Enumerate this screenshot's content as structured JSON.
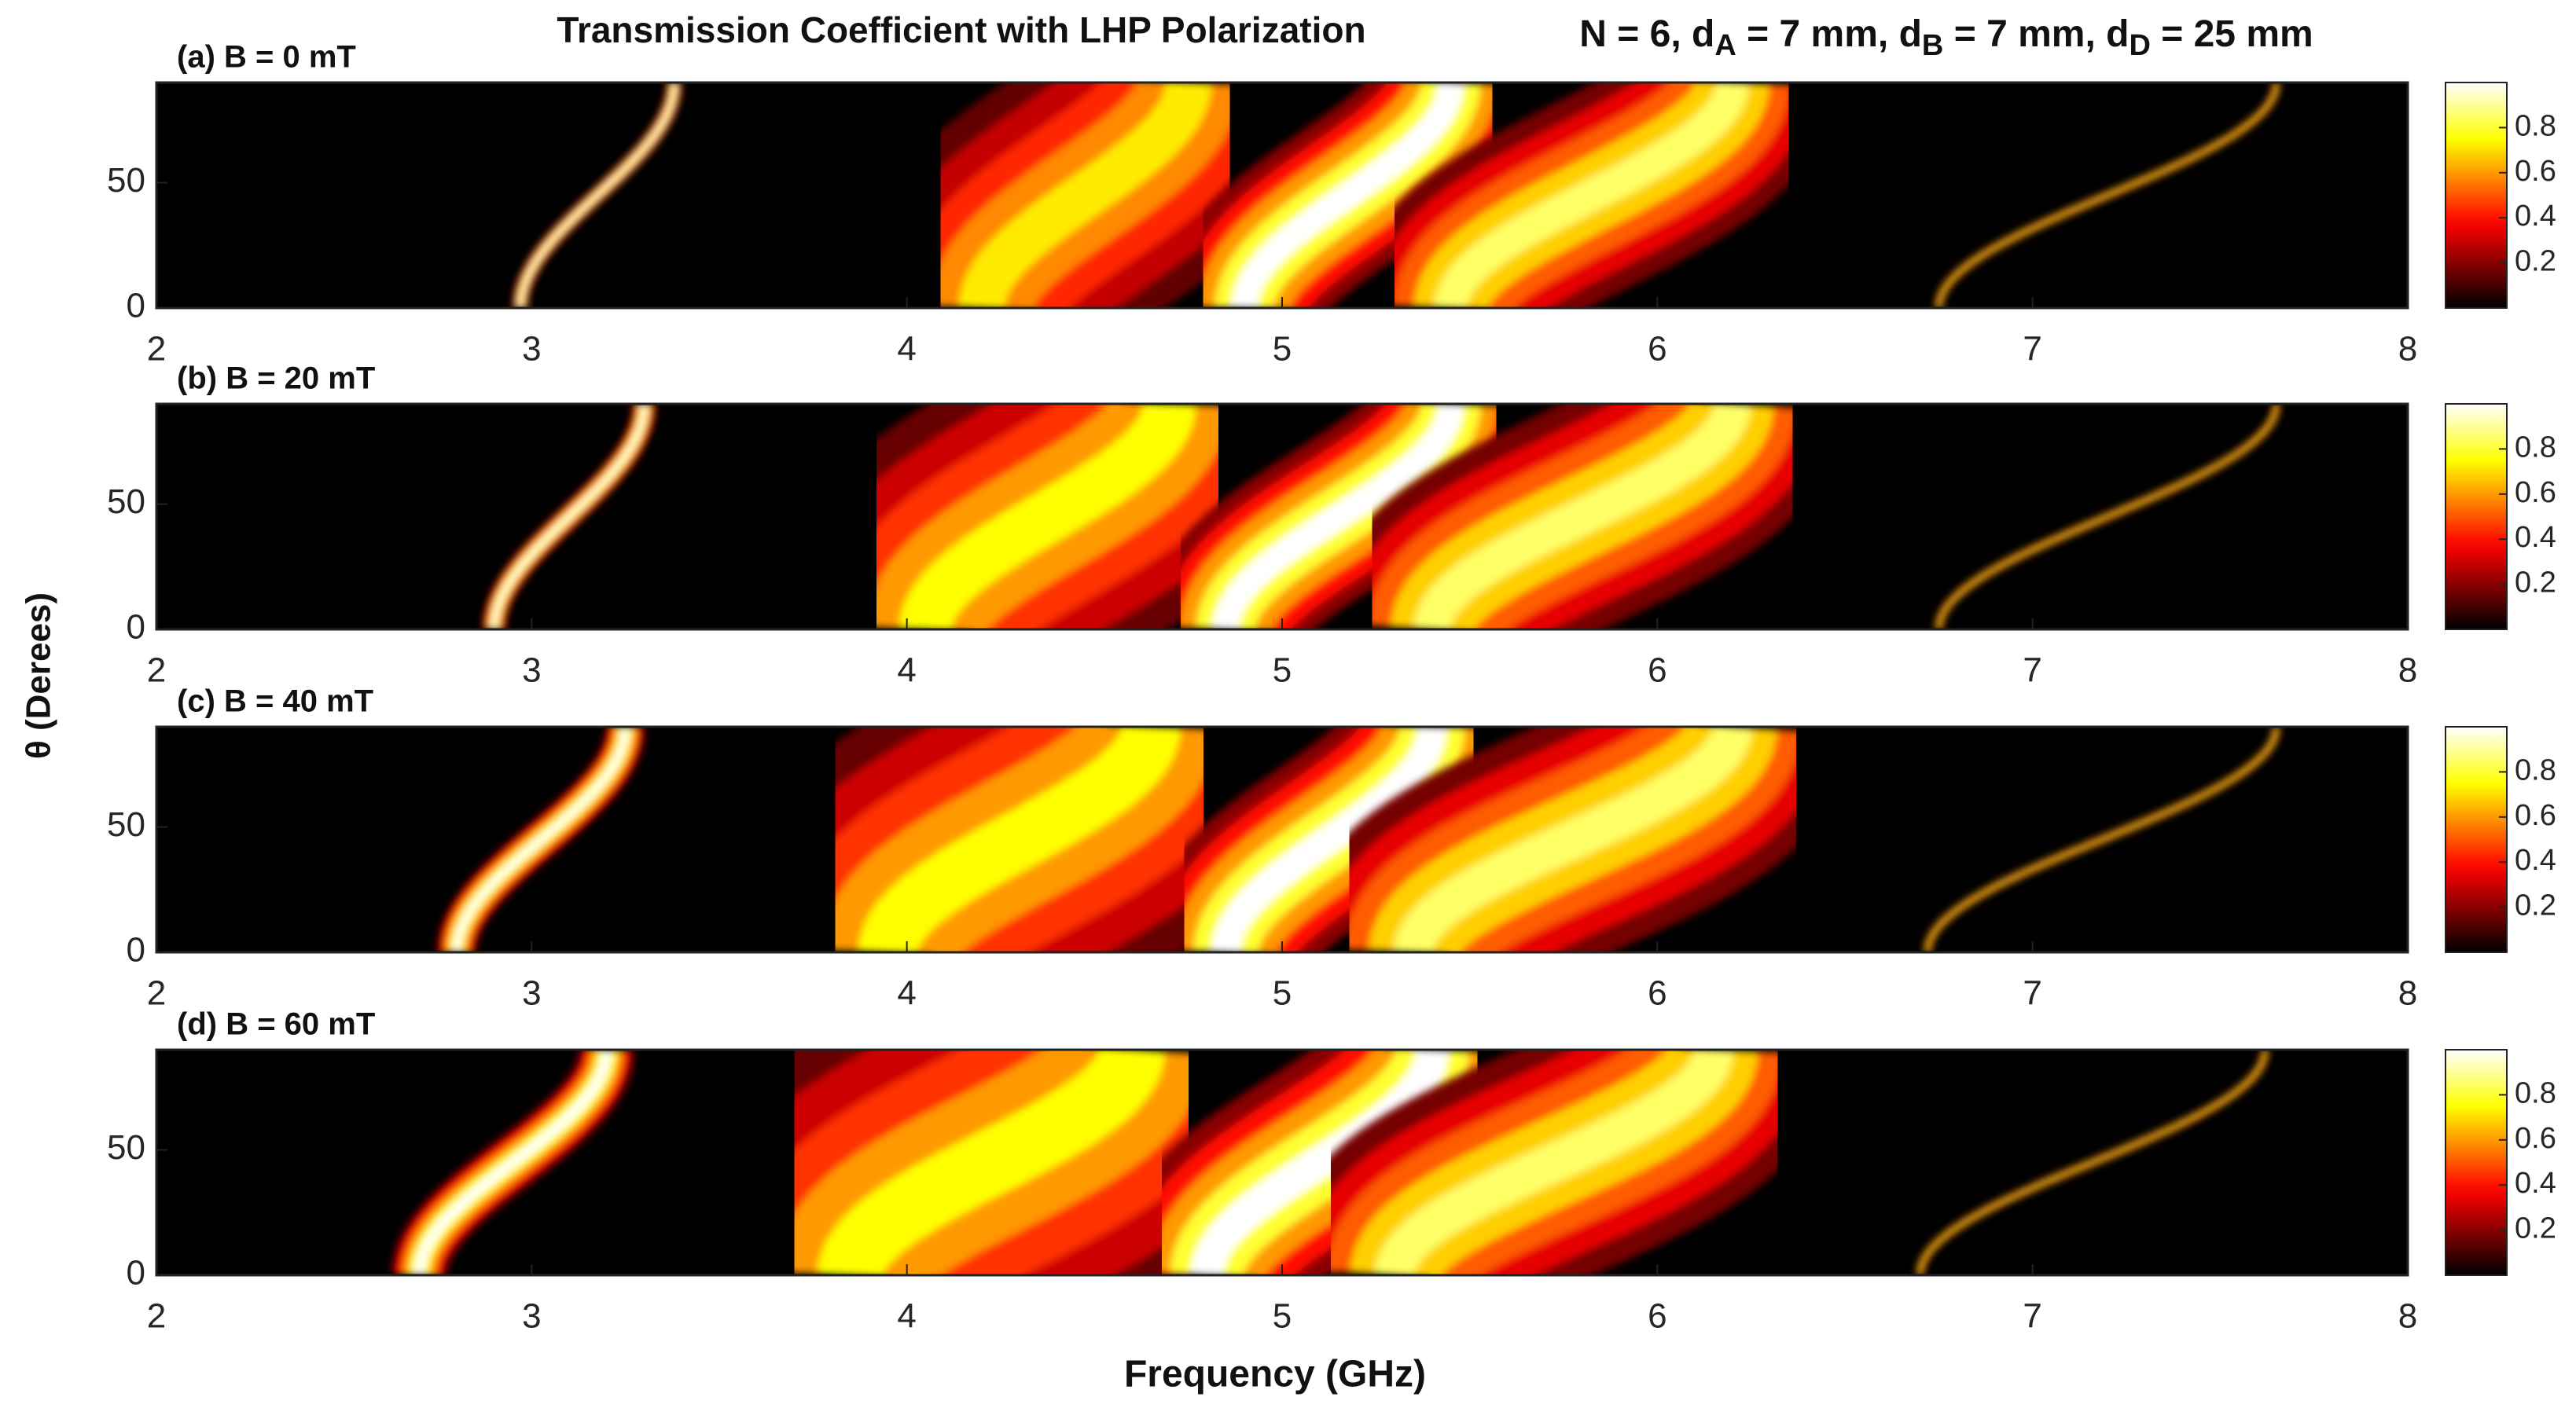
{
  "chart_data": [
    {
      "type": "heatmap",
      "title": "Transmission Coefficient with LHP Polarization",
      "annotation": [
        "N = 6, d",
        "A",
        " = 7 mm, d",
        "B",
        " = 7 mm, d",
        "D",
        " = 25 mm"
      ],
      "ylabel": "θ (Derees)",
      "panel_label": "(a) B = 0 mT",
      "colormap": "hot",
      "xlim": [
        2,
        8
      ],
      "xticks": [
        2,
        3,
        4,
        5,
        6,
        7,
        8
      ],
      "ylim": [
        0,
        90
      ],
      "yticks": [
        0,
        50
      ],
      "clim": [
        0,
        1
      ],
      "cticks": [
        0.2,
        0.4,
        0.6,
        0.8
      ],
      "bands": [
        {
          "f0": 2.97,
          "f90": 3.38,
          "peak": 1,
          "width": 0.02
        },
        {
          "f0": 4.2,
          "f90": 4.75,
          "peak": 0.72,
          "width": 0.35
        },
        {
          "f0": 4.9,
          "f90": 5.45,
          "peak": 1,
          "width": 0.2
        },
        {
          "f0": 5.45,
          "f90": 6.2,
          "peak": 0.85,
          "width": 0.25
        },
        {
          "f0": 6.75,
          "f90": 7.65,
          "peak": 0.8,
          "width": 0.01
        }
      ]
    },
    {
      "type": "heatmap",
      "panel_label": "(b) B = 20 mT",
      "colormap": "hot",
      "xlim": [
        2,
        8
      ],
      "xticks": [
        2,
        3,
        4,
        5,
        6,
        7,
        8
      ],
      "ylim": [
        0,
        90
      ],
      "yticks": [
        0,
        50
      ],
      "clim": [
        0,
        1
      ],
      "cticks": [
        0.2,
        0.4,
        0.6,
        0.8
      ],
      "bands": [
        {
          "f0": 2.9,
          "f90": 3.3,
          "peak": 1,
          "width": 0.03
        },
        {
          "f0": 4.05,
          "f90": 4.7,
          "peak": 0.75,
          "width": 0.4
        },
        {
          "f0": 4.85,
          "f90": 5.45,
          "peak": 1,
          "width": 0.2
        },
        {
          "f0": 5.4,
          "f90": 6.2,
          "peak": 0.85,
          "width": 0.28
        },
        {
          "f0": 6.75,
          "f90": 7.65,
          "peak": 0.8,
          "width": 0.01
        }
      ]
    },
    {
      "type": "heatmap",
      "panel_label": "(c) B = 40 mT",
      "colormap": "hot",
      "xlim": [
        2,
        8
      ],
      "xticks": [
        2,
        3,
        4,
        5,
        6,
        7,
        8
      ],
      "ylim": [
        0,
        90
      ],
      "yticks": [
        0,
        50
      ],
      "clim": [
        0,
        1
      ],
      "cticks": [
        0.2,
        0.4,
        0.6,
        0.8
      ],
      "bands": [
        {
          "f0": 2.8,
          "f90": 3.25,
          "peak": 1,
          "width": 0.05
        },
        {
          "f0": 3.95,
          "f90": 4.65,
          "peak": 0.75,
          "width": 0.45
        },
        {
          "f0": 4.85,
          "f90": 5.4,
          "peak": 1,
          "width": 0.22
        },
        {
          "f0": 5.35,
          "f90": 6.2,
          "peak": 0.85,
          "width": 0.3
        },
        {
          "f0": 6.72,
          "f90": 7.65,
          "peak": 0.8,
          "width": 0.01
        }
      ]
    },
    {
      "type": "heatmap",
      "panel_label": "(d) B = 60 mT",
      "colormap": "hot",
      "xlim": [
        2,
        8
      ],
      "xticks": [
        2,
        3,
        4,
        5,
        6,
        7,
        8
      ],
      "ylim": [
        0,
        90
      ],
      "yticks": [
        0,
        50
      ],
      "clim": [
        0,
        1
      ],
      "cticks": [
        0.2,
        0.4,
        0.6,
        0.8
      ],
      "xlabel": "Frequency (GHz)",
      "bands": [
        {
          "f0": 2.7,
          "f90": 3.2,
          "peak": 1,
          "width": 0.07
        },
        {
          "f0": 3.85,
          "f90": 4.6,
          "peak": 0.75,
          "width": 0.5
        },
        {
          "f0": 4.8,
          "f90": 5.4,
          "peak": 1,
          "width": 0.25
        },
        {
          "f0": 5.3,
          "f90": 6.15,
          "peak": 0.85,
          "width": 0.3
        },
        {
          "f0": 6.7,
          "f90": 7.62,
          "peak": 0.8,
          "width": 0.01
        }
      ]
    }
  ]
}
